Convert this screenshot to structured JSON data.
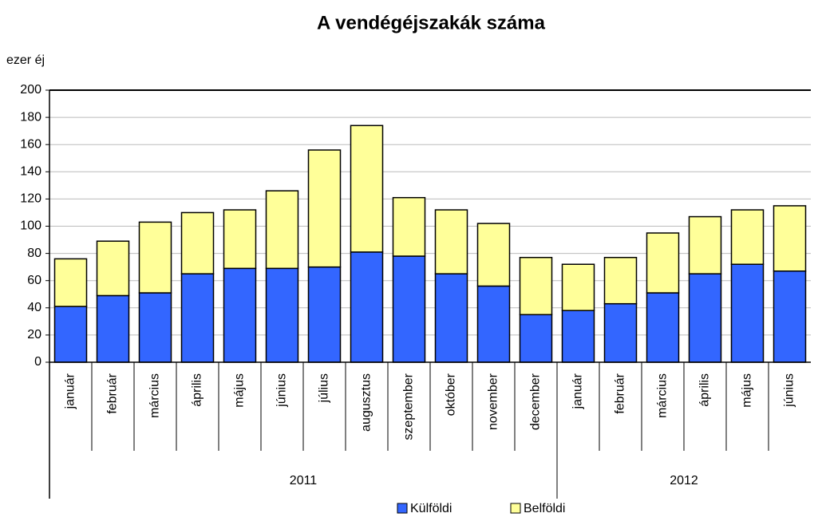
{
  "chart_data": {
    "type": "stacked_bar",
    "title": "A vendégéjszakák száma",
    "y_label": "ezer éj",
    "groups": [
      {
        "label": "2011",
        "categories": [
          "január",
          "február",
          "március",
          "április",
          "május",
          "június",
          "július",
          "augusztus",
          "szeptember",
          "október",
          "november",
          "december"
        ]
      },
      {
        "label": "2012",
        "categories": [
          "január",
          "február",
          "március",
          "április",
          "május",
          "június"
        ]
      }
    ],
    "series": [
      {
        "name": "Külföldi",
        "color": "#3366ff",
        "values": [
          41,
          49,
          51,
          65,
          69,
          69,
          70,
          81,
          78,
          65,
          56,
          35,
          38,
          43,
          51,
          65,
          72,
          67
        ]
      },
      {
        "name": "Belföldi",
        "color": "#ffff99",
        "values": [
          35,
          40,
          52,
          45,
          43,
          57,
          86,
          93,
          43,
          47,
          46,
          42,
          34,
          34,
          44,
          42,
          40,
          48
        ]
      }
    ],
    "ylim": [
      0,
      200
    ],
    "yticks": [
      0,
      20,
      40,
      60,
      80,
      100,
      120,
      140,
      160,
      180,
      200
    ],
    "grid": true
  }
}
